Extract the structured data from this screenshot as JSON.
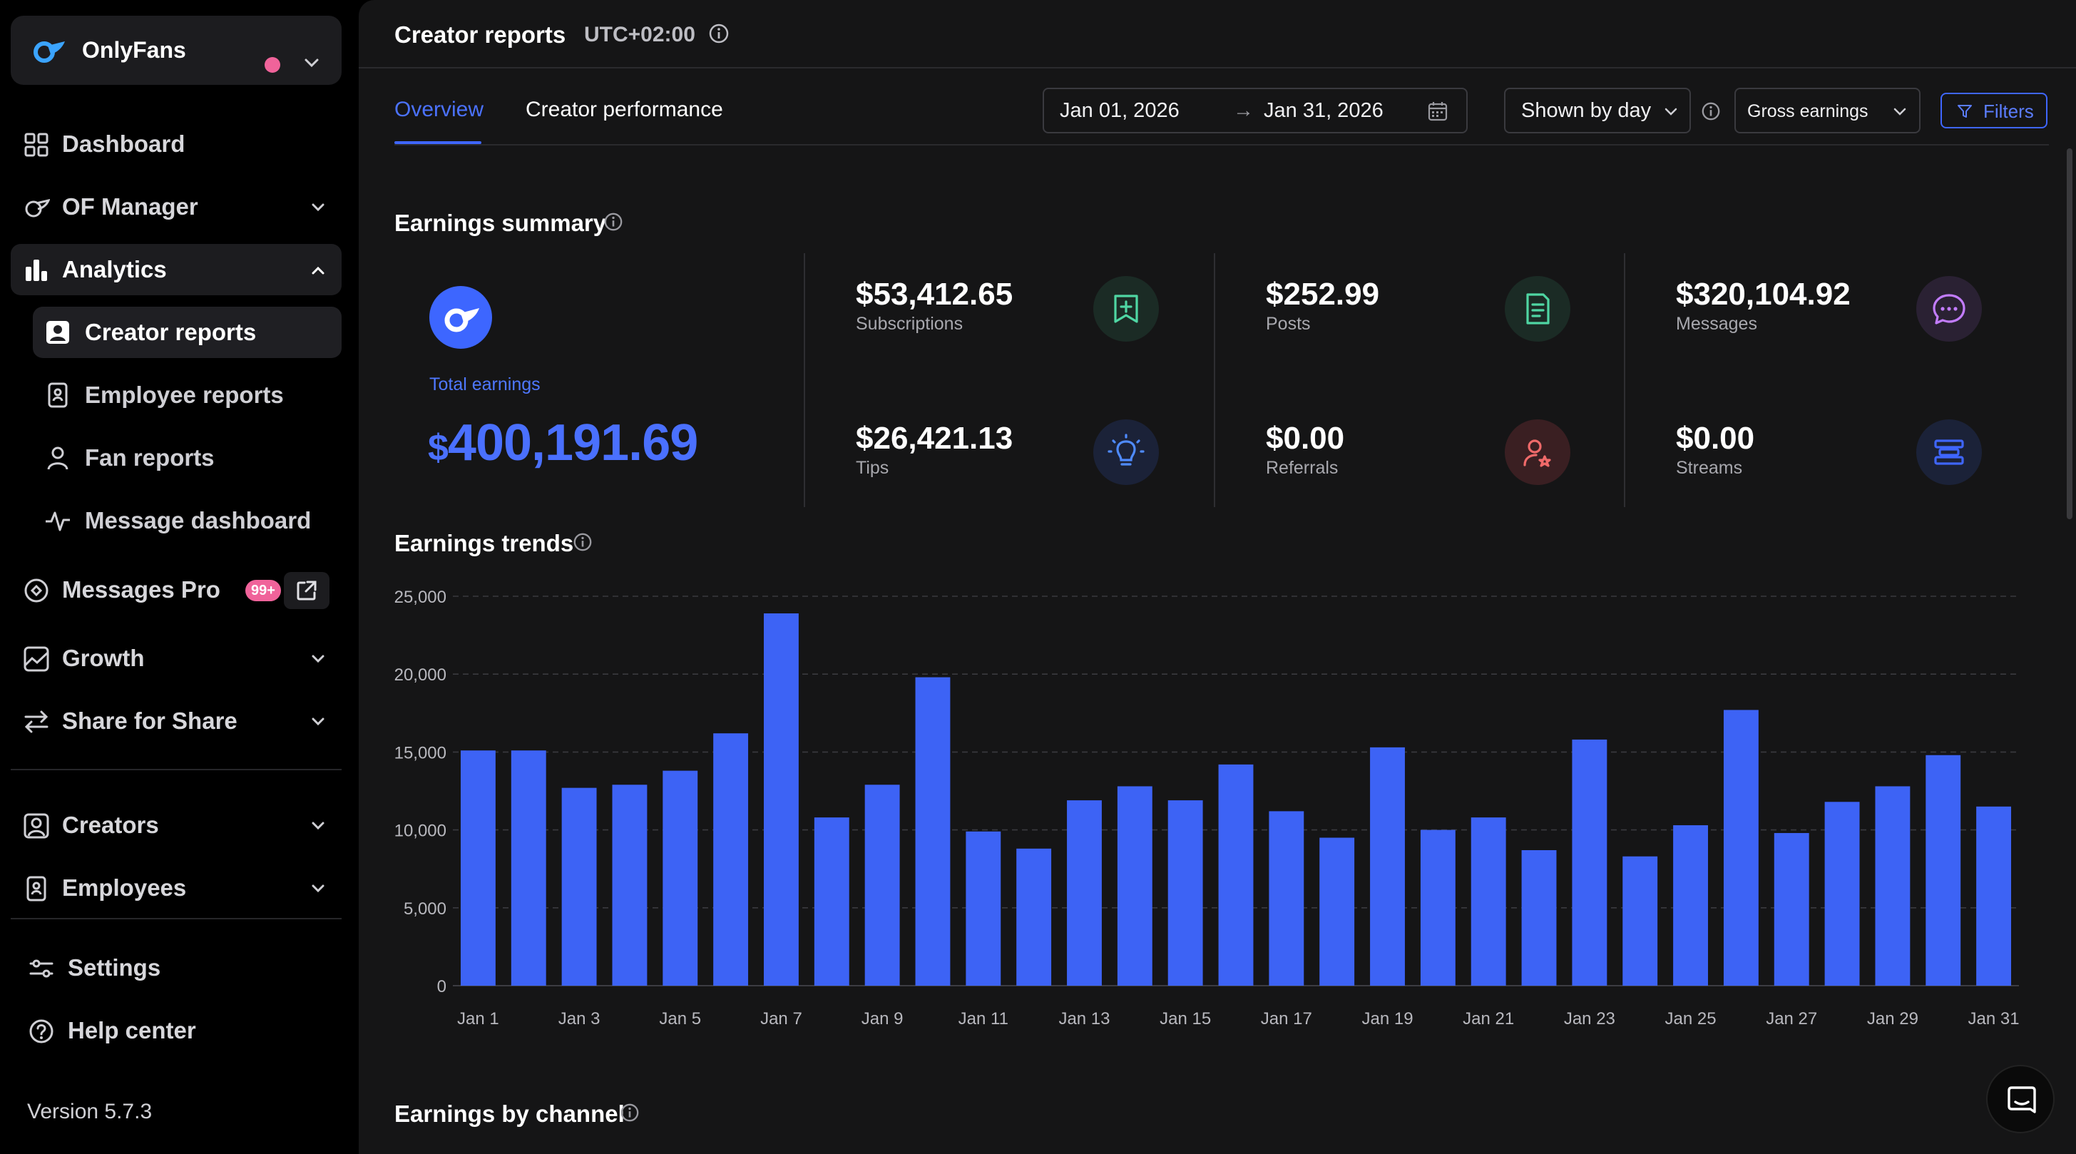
{
  "account": {
    "name": "OnlyFans"
  },
  "nav": {
    "dashboard": "Dashboard",
    "of_manager": "OF Manager",
    "analytics": "Analytics",
    "creator_reports": "Creator reports",
    "employee_reports": "Employee reports",
    "fan_reports": "Fan reports",
    "message_dashboard": "Message dashboard",
    "messages_pro": "Messages Pro",
    "messages_pro_badge": "99+",
    "growth": "Growth",
    "share_for_share": "Share for Share",
    "creators": "Creators",
    "employees": "Employees",
    "settings": "Settings",
    "help_center": "Help center",
    "version": "Version 5.7.3"
  },
  "header": {
    "title": "Creator reports",
    "timezone": "UTC+02:00"
  },
  "tabs": {
    "overview": "Overview",
    "creator_performance": "Creator performance"
  },
  "controls": {
    "date_from": "Jan 01, 2026",
    "date_arrow": "→",
    "date_to": "Jan 31, 2026",
    "grouping": "Shown by day",
    "metric": "Gross earnings",
    "filters": "Filters"
  },
  "summary": {
    "title": "Earnings summary",
    "total_label": "Total earnings",
    "total_currency": "$",
    "total_value": "400,191.69",
    "subscriptions": {
      "value": "$53,412.65",
      "label": "Subscriptions"
    },
    "posts": {
      "value": "$252.99",
      "label": "Posts"
    },
    "messages": {
      "value": "$320,104.92",
      "label": "Messages"
    },
    "tips": {
      "value": "$26,421.13",
      "label": "Tips"
    },
    "referrals": {
      "value": "$0.00",
      "label": "Referrals"
    },
    "streams": {
      "value": "$0.00",
      "label": "Streams"
    }
  },
  "trends": {
    "title": "Earnings trends"
  },
  "channel": {
    "title": "Earnings by channel"
  },
  "colors": {
    "accent": "#3f66ff",
    "bar": "#3d63f5",
    "badge": "#f0639a"
  },
  "chart_data": {
    "type": "bar",
    "categories": [
      "Jan 1",
      "Jan 2",
      "Jan 3",
      "Jan 4",
      "Jan 5",
      "Jan 6",
      "Jan 7",
      "Jan 8",
      "Jan 9",
      "Jan 10",
      "Jan 11",
      "Jan 12",
      "Jan 13",
      "Jan 14",
      "Jan 15",
      "Jan 16",
      "Jan 17",
      "Jan 18",
      "Jan 19",
      "Jan 20",
      "Jan 21",
      "Jan 22",
      "Jan 23",
      "Jan 24",
      "Jan 25",
      "Jan 26",
      "Jan 27",
      "Jan 28",
      "Jan 29",
      "Jan 30",
      "Jan 31"
    ],
    "x_tick_labels": [
      "Jan 1",
      "Jan 3",
      "Jan 5",
      "Jan 7",
      "Jan 9",
      "Jan 11",
      "Jan 13",
      "Jan 15",
      "Jan 17",
      "Jan 19",
      "Jan 21",
      "Jan 23",
      "Jan 25",
      "Jan 27",
      "Jan 29",
      "Jan 31"
    ],
    "values": [
      15100,
      15100,
      12700,
      12900,
      13800,
      16200,
      23900,
      10800,
      12900,
      19800,
      9900,
      8800,
      11900,
      12800,
      11900,
      14200,
      11200,
      9500,
      15300,
      10000,
      10800,
      8700,
      15800,
      8300,
      10300,
      17700,
      9800,
      11800,
      12800,
      14800,
      11500
    ],
    "y_ticks": [
      "25,000",
      "20,000",
      "15,000",
      "10,000",
      "5,000",
      "0"
    ],
    "ylim": [
      0,
      25000
    ],
    "grid": true
  }
}
